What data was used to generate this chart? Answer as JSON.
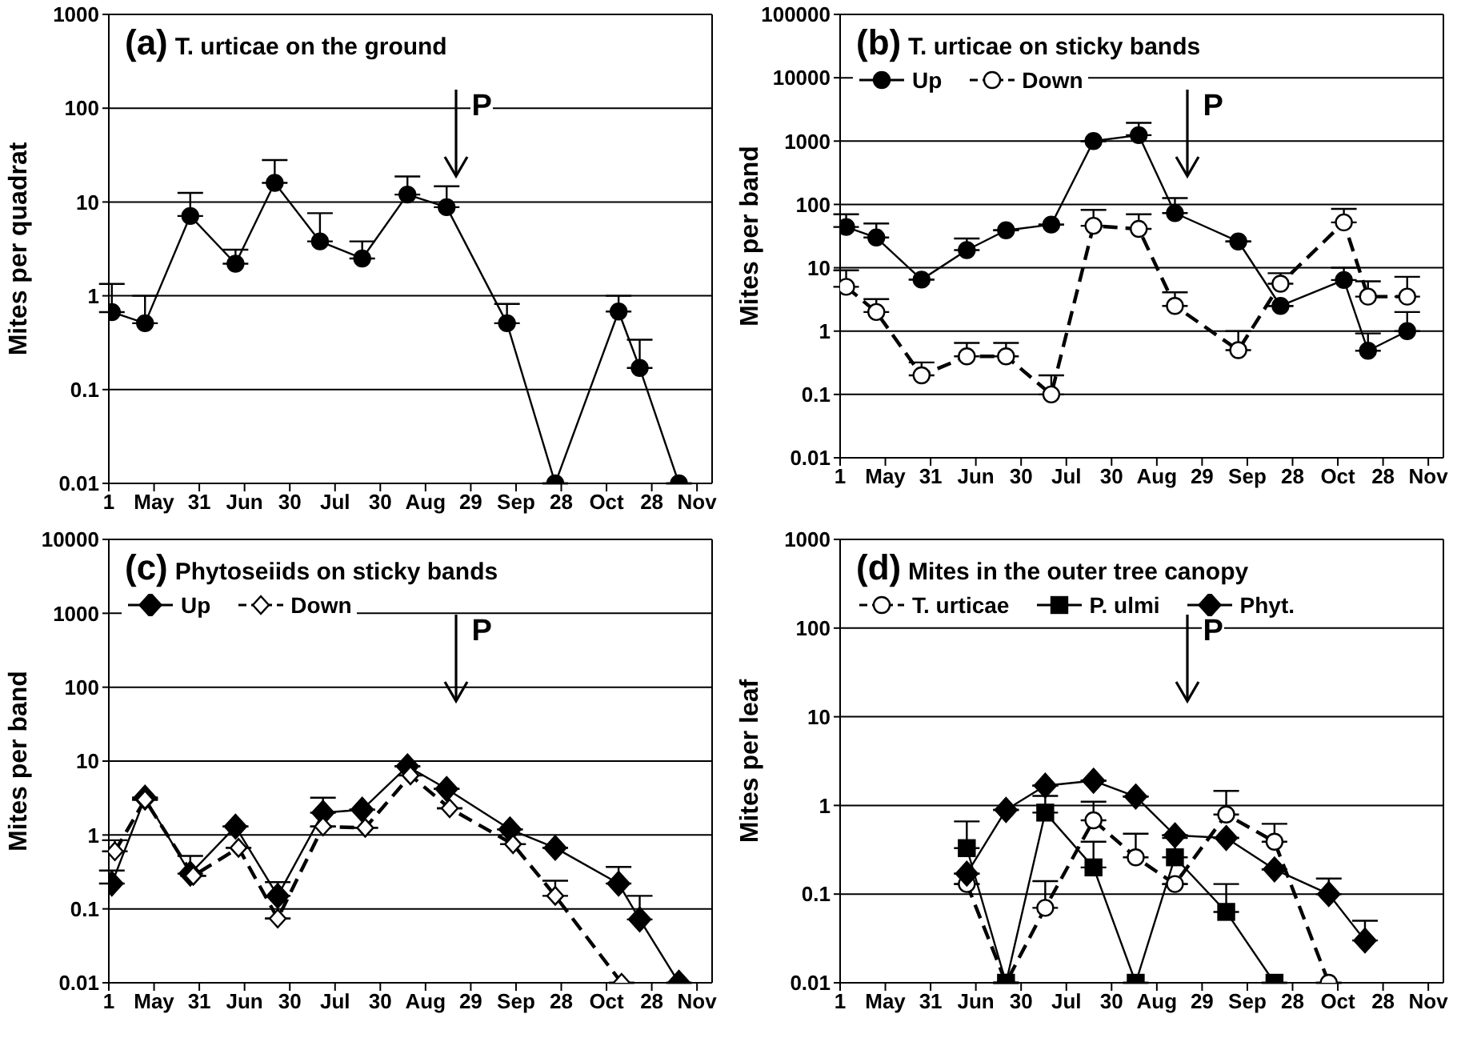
{
  "chart_data": [
    {
      "type": "line",
      "title": "(a) T. urticae on the ground",
      "ylabel": "Mites per quadrat",
      "log": "y",
      "grid": "y",
      "xlim": [
        "--05-01",
        "--11-17"
      ],
      "xticks": [
        {
          "value": "--05-01",
          "label": "1"
        },
        {
          "value": "--05-16",
          "label": "May"
        },
        {
          "value": "--05-31",
          "label": "31"
        },
        {
          "value": "--06-15",
          "label": "Jun"
        },
        {
          "value": "--06-30",
          "label": "30"
        },
        {
          "value": "--07-15",
          "label": "Jul"
        },
        {
          "value": "--07-30",
          "label": "30"
        },
        {
          "value": "--08-14",
          "label": "Aug"
        },
        {
          "value": "--08-29",
          "label": "29"
        },
        {
          "value": "--09-13",
          "label": "Sep"
        },
        {
          "value": "--09-28",
          "label": "28"
        },
        {
          "value": "--10-13",
          "label": "Oct"
        },
        {
          "value": "--10-28",
          "label": "28"
        },
        {
          "value": "--11-12",
          "label": "Nov"
        }
      ],
      "ylim": [
        0.01,
        1000
      ],
      "yticks": [
        0.01,
        0.1,
        1,
        10,
        100,
        1000
      ],
      "annotations": [
        "P"
      ],
      "series": [
        {
          "color": "#000000",
          "marker": "circle",
          "line_style": "solid",
          "x": [
            "--05-02",
            "--05-13",
            "--05-28",
            "--06-12",
            "--06-25",
            "--07-10",
            "--07-24",
            "--08-08",
            "--08-21",
            "--09-10",
            "--09-26",
            "--10-17",
            "--10-24",
            "--11-06"
          ],
          "values": [
            0.67,
            0.51,
            7.1,
            2.2,
            16,
            3.8,
            2.5,
            12,
            8.8,
            0.51,
            0.01,
            0.68,
            0.17,
            0.01
          ],
          "errors": [
            [
              0.67,
              1.34
            ],
            [
              0.51,
              1.0
            ],
            [
              7.1,
              12.5
            ],
            [
              2.2,
              3.1
            ],
            [
              16,
              28
            ],
            [
              3.8,
              7.6
            ],
            [
              2.5,
              3.8
            ],
            [
              12,
              18.7
            ],
            [
              8.8,
              14.7
            ],
            [
              0.51,
              0.82
            ],
            null,
            [
              0.68,
              1.0
            ],
            [
              0.17,
              0.34
            ],
            null
          ]
        }
      ]
    },
    {
      "type": "line",
      "title": "(b) T. urticae on sticky bands",
      "ylabel": "Mites per band",
      "log": "y",
      "grid": "y",
      "legend": "top left",
      "xlim": [
        "--05-01",
        "--11-17"
      ],
      "xticks": [
        {
          "value": "--05-01",
          "label": "1"
        },
        {
          "value": "--05-16",
          "label": "May"
        },
        {
          "value": "--05-31",
          "label": "31"
        },
        {
          "value": "--06-15",
          "label": "Jun"
        },
        {
          "value": "--06-30",
          "label": "30"
        },
        {
          "value": "--07-15",
          "label": "Jul"
        },
        {
          "value": "--07-30",
          "label": "30"
        },
        {
          "value": "--08-14",
          "label": "Aug"
        },
        {
          "value": "--08-29",
          "label": "29"
        },
        {
          "value": "--09-13",
          "label": "Sep"
        },
        {
          "value": "--09-28",
          "label": "28"
        },
        {
          "value": "--10-13",
          "label": "Oct"
        },
        {
          "value": "--10-28",
          "label": "28"
        },
        {
          "value": "--11-12",
          "label": "Nov"
        }
      ],
      "ylim": [
        0.01,
        100000
      ],
      "yticks": [
        0.01,
        0.1,
        1,
        10,
        100,
        1000,
        10000,
        100000
      ],
      "annotations": [
        "P"
      ],
      "series": [
        {
          "name": "Up",
          "color": "#000000",
          "marker": "circle",
          "line_style": "solid",
          "x": [
            "--05-03",
            "--05-13",
            "--05-28",
            "--06-12",
            "--06-25",
            "--07-10",
            "--07-24",
            "--08-08",
            "--08-20",
            "--09-10",
            "--09-24",
            "--10-15",
            "--10-23",
            "--11-05"
          ],
          "values": [
            44,
            30,
            6.5,
            19,
            39,
            48,
            1000,
            1240,
            73,
            26,
            2.5,
            6.4,
            0.49,
            1.0
          ],
          "errors": [
            [
              44,
              70
            ],
            [
              30,
              50
            ],
            null,
            [
              19,
              29
            ],
            null,
            null,
            null,
            [
              1240,
              1940
            ],
            [
              73,
              126
            ],
            null,
            null,
            [
              6.4,
              10
            ],
            [
              0.49,
              0.92
            ],
            [
              1.0,
              2.0
            ]
          ]
        },
        {
          "name": "Down",
          "color": "#000000",
          "marker": "circle",
          "line_style": "dashed",
          "x": [
            "--05-03",
            "--05-13",
            "--05-28",
            "--06-12",
            "--06-25",
            "--07-10",
            "--07-24",
            "--08-08",
            "--08-20",
            "--09-10",
            "--09-24",
            "--10-15",
            "--10-23",
            "--11-05"
          ],
          "values": [
            5.0,
            2.0,
            0.2,
            0.4,
            0.4,
            0.1,
            46,
            41,
            2.5,
            0.5,
            5.6,
            52,
            3.5,
            3.5
          ],
          "errors": [
            [
              5.0,
              9.1
            ],
            [
              2.0,
              3.2
            ],
            [
              0.2,
              0.32
            ],
            [
              0.4,
              0.65
            ],
            [
              0.4,
              0.65
            ],
            [
              0.1,
              0.2
            ],
            [
              46,
              82
            ],
            [
              41,
              70
            ],
            [
              2.5,
              4.1
            ],
            [
              0.5,
              1.0
            ],
            [
              5.6,
              8.2
            ],
            [
              52,
              85
            ],
            [
              3.5,
              6.1
            ],
            [
              3.5,
              7.2
            ]
          ]
        }
      ]
    },
    {
      "type": "line",
      "title": "(c) Phytoseiids on sticky bands",
      "ylabel": "Mites per band",
      "log": "y",
      "grid": "y",
      "legend": "top left",
      "xlim": [
        "--05-01",
        "--11-17"
      ],
      "xticks": [
        {
          "value": "--05-01",
          "label": "1"
        },
        {
          "value": "--05-16",
          "label": "May"
        },
        {
          "value": "--05-31",
          "label": "31"
        },
        {
          "value": "--06-15",
          "label": "Jun"
        },
        {
          "value": "--06-30",
          "label": "30"
        },
        {
          "value": "--07-15",
          "label": "Jul"
        },
        {
          "value": "--07-30",
          "label": "30"
        },
        {
          "value": "--08-14",
          "label": "Aug"
        },
        {
          "value": "--08-29",
          "label": "29"
        },
        {
          "value": "--09-13",
          "label": "Sep"
        },
        {
          "value": "--09-28",
          "label": "28"
        },
        {
          "value": "--10-13",
          "label": "Oct"
        },
        {
          "value": "--10-28",
          "label": "28"
        },
        {
          "value": "--11-12",
          "label": "Nov"
        }
      ],
      "ylim": [
        0.01,
        10000
      ],
      "yticks": [
        0.01,
        0.1,
        1,
        10,
        100,
        1000,
        10000
      ],
      "annotations": [
        "P"
      ],
      "series": [
        {
          "name": "Up",
          "color": "#000000",
          "marker": "diamond",
          "line_style": "solid",
          "x": [
            "--05-02",
            "--05-13",
            "--05-28",
            "--06-12",
            "--06-26",
            "--07-11",
            "--07-24",
            "--08-08",
            "--08-21",
            "--09-11",
            "--09-26",
            "--10-17",
            "--10-24",
            "--11-06"
          ],
          "values": [
            0.22,
            3.2,
            0.3,
            1.3,
            0.15,
            2.0,
            2.2,
            8.5,
            4.2,
            1.19,
            0.67,
            0.22,
            0.072,
            0.01
          ],
          "errors": [
            [
              0.22,
              0.33
            ],
            null,
            [
              0.3,
              0.52
            ],
            null,
            [
              0.15,
              0.23
            ],
            [
              2.0,
              3.2
            ],
            null,
            null,
            null,
            null,
            null,
            [
              0.22,
              0.37
            ],
            [
              0.072,
              0.15
            ],
            null
          ]
        },
        {
          "name": "Down",
          "color": "#000000",
          "marker": "diamond",
          "line_style": "dashed",
          "x": [
            "--05-03",
            "--05-13",
            "--05-29",
            "--06-13",
            "--06-26",
            "--07-11",
            "--07-25",
            "--08-09",
            "--08-22",
            "--09-12",
            "--09-26",
            "--10-18"
          ],
          "values": [
            0.6,
            3.0,
            0.28,
            0.67,
            0.074,
            1.3,
            1.25,
            6.4,
            2.3,
            0.75,
            0.15,
            0.01
          ],
          "errors": [
            [
              0.6,
              0.85
            ],
            null,
            null,
            null,
            null,
            null,
            null,
            null,
            null,
            null,
            [
              0.15,
              0.24
            ],
            null
          ]
        }
      ]
    },
    {
      "type": "line",
      "title": "(d) Mites in the outer tree canopy",
      "ylabel": "Mites per leaf",
      "log": "y",
      "grid": "y",
      "legend": "top left",
      "xlim": [
        "--05-01",
        "--11-17"
      ],
      "xticks": [
        {
          "value": "--05-01",
          "label": "1"
        },
        {
          "value": "--05-16",
          "label": "May"
        },
        {
          "value": "--05-31",
          "label": "31"
        },
        {
          "value": "--06-15",
          "label": "Jun"
        },
        {
          "value": "--06-30",
          "label": "30"
        },
        {
          "value": "--07-15",
          "label": "Jul"
        },
        {
          "value": "--07-30",
          "label": "30"
        },
        {
          "value": "--08-14",
          "label": "Aug"
        },
        {
          "value": "--08-29",
          "label": "29"
        },
        {
          "value": "--09-13",
          "label": "Sep"
        },
        {
          "value": "--09-28",
          "label": "28"
        },
        {
          "value": "--10-13",
          "label": "Oct"
        },
        {
          "value": "--10-28",
          "label": "28"
        },
        {
          "value": "--11-12",
          "label": "Nov"
        }
      ],
      "ylim": [
        0.01,
        1000
      ],
      "yticks": [
        0.01,
        0.1,
        1,
        10,
        100,
        1000
      ],
      "annotations": [
        "P"
      ],
      "series": [
        {
          "name": "T. urticae",
          "color": "#000000",
          "marker": "circle",
          "line_style": "dashed",
          "x": [
            "--06-12",
            "--06-25",
            "--07-08",
            "--07-24",
            "--08-07",
            "--08-20",
            "--09-06",
            "--09-22",
            "--10-10"
          ],
          "values": [
            0.13,
            0.01,
            0.07,
            0.68,
            0.26,
            0.13,
            0.79,
            0.39,
            0.01
          ],
          "errors": [
            null,
            null,
            [
              0.07,
              0.14
            ],
            [
              0.68,
              1.1
            ],
            [
              0.26,
              0.48
            ],
            null,
            [
              0.79,
              1.46
            ],
            [
              0.39,
              0.62
            ],
            null
          ]
        },
        {
          "name": "P. ulmi",
          "color": "#000000",
          "marker": "square",
          "line_style": "solid",
          "x": [
            "--06-12",
            "--06-25",
            "--07-08",
            "--07-24",
            "--08-07",
            "--08-20",
            "--09-06",
            "--09-22"
          ],
          "values": [
            0.33,
            0.01,
            0.83,
            0.2,
            0.01,
            0.26,
            0.063,
            0.01
          ],
          "errors": [
            [
              0.33,
              0.66
            ],
            null,
            [
              0.83,
              1.28
            ],
            [
              0.2,
              0.39
            ],
            null,
            [
              0.26,
              0.43
            ],
            [
              0.063,
              0.13
            ],
            null
          ]
        },
        {
          "name": "Phyt.",
          "color": "#000000",
          "marker": "diamond",
          "line_style": "solid",
          "x": [
            "--06-12",
            "--06-25",
            "--07-08",
            "--07-24",
            "--08-07",
            "--08-20",
            "--09-06",
            "--09-22",
            "--10-10",
            "--10-22"
          ],
          "values": [
            0.17,
            0.89,
            1.67,
            1.9,
            1.26,
            0.46,
            0.43,
            0.19,
            0.1,
            0.03
          ],
          "errors": [
            null,
            null,
            null,
            null,
            null,
            null,
            null,
            null,
            [
              0.1,
              0.15
            ],
            [
              0.03,
              0.05
            ]
          ]
        }
      ]
    }
  ]
}
